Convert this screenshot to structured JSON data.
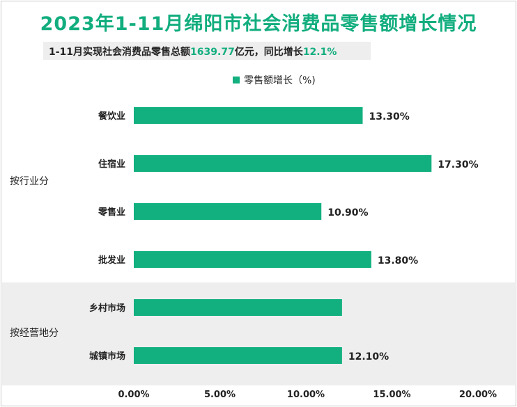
{
  "title": "2023年1-11月绵阳市社会消费品零售额增长情况",
  "subtitle": {
    "prefix": "1-11月实现社会消费品零售总额",
    "total": "1639.77",
    "middle": "亿元，同比增长",
    "growth": "12.1%"
  },
  "colors": {
    "bar": "#12b07f",
    "title": "#12ad7e",
    "band": "#eeeeee"
  },
  "chart_data": {
    "type": "bar",
    "orientation": "horizontal",
    "series": [
      {
        "name": "零售额增长（%)",
        "values": [
          13.3,
          17.3,
          10.9,
          13.8,
          12.1,
          12.1
        ]
      }
    ],
    "categories": [
      "餐饮业",
      "住宿业",
      "零售业",
      "批发业",
      "乡村市场",
      "城镇市场"
    ],
    "data_labels": [
      "13.30%",
      "17.30%",
      "10.90%",
      "13.80%",
      "",
      "12.10%"
    ],
    "groups": [
      {
        "label": "按行业分",
        "categories": [
          "餐饮业",
          "住宿业",
          "零售业",
          "批发业"
        ]
      },
      {
        "label": "按经营地分",
        "categories": [
          "乡村市场",
          "城镇市场"
        ]
      }
    ],
    "x_ticks": [
      "0.00%",
      "5.00%",
      "10.00%",
      "15.00%",
      "20.00%"
    ],
    "xlim": [
      0,
      20
    ],
    "legend_position": "top",
    "grid": false
  }
}
